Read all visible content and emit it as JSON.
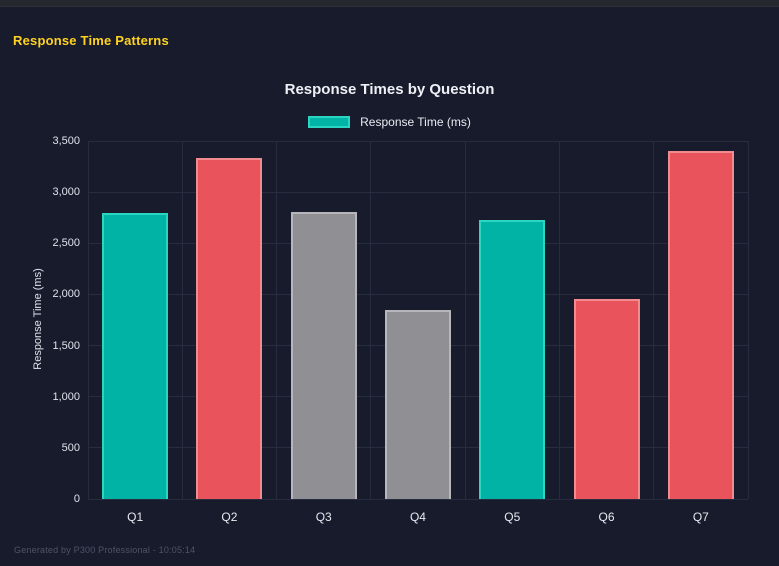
{
  "page": {
    "title": "Response Time Patterns",
    "footer": "Generated by P300 Professional - 10:05:14"
  },
  "colors": {
    "background": "#181b2c",
    "top_strip": "#26282f",
    "page_title_yellow": "#ffd21f",
    "chart_text": "#eef0f5",
    "tick_text": "#dfe3ec",
    "grid": "#272c40",
    "footer_text": "#4d5366"
  },
  "chart_data": {
    "type": "bar",
    "title": "Response Times by Question",
    "legend": [
      {
        "label": "Response Time (ms)",
        "color_key": "teal"
      }
    ],
    "legend_position": "top",
    "xlabel": "",
    "ylabel": "Response Time (ms)",
    "categories": [
      "Q1",
      "Q2",
      "Q3",
      "Q4",
      "Q5",
      "Q6",
      "Q7"
    ],
    "values": [
      2800,
      3330,
      2810,
      1850,
      2730,
      1960,
      3400
    ],
    "bar_color_keys": [
      "teal",
      "red",
      "gray",
      "gray",
      "teal",
      "red",
      "red"
    ],
    "palette": {
      "teal": {
        "fill": "#00b3a4",
        "border": "#2ad6c2"
      },
      "red": {
        "fill": "#e9545c",
        "border": "#f28b90"
      },
      "gray": {
        "fill": "#8f8f94",
        "border": "#b6b6bb"
      }
    },
    "ylim": [
      0,
      3500
    ],
    "ytick_labels": [
      "0",
      "500",
      "1,000",
      "1,500",
      "2,000",
      "2,500",
      "3,000",
      "3,500"
    ],
    "grid": true
  }
}
